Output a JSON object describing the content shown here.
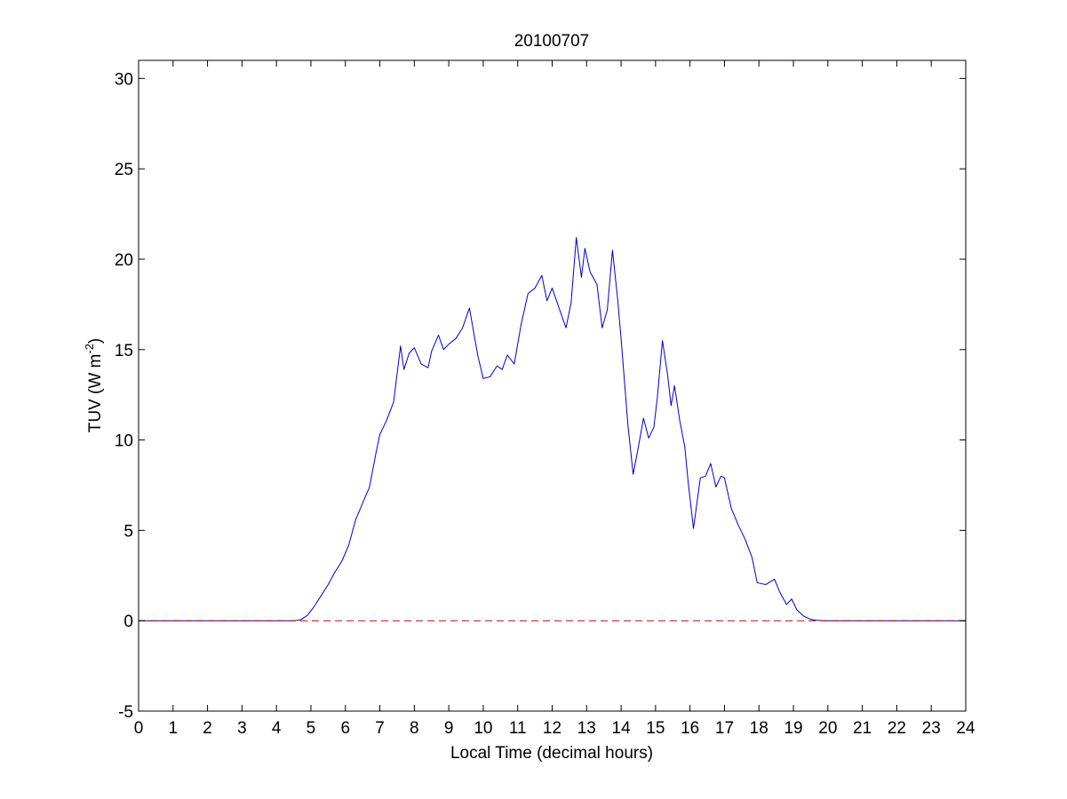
{
  "chart_data": {
    "type": "line",
    "title": "20100707",
    "xlabel": "Local Time (decimal hours)",
    "ylabel": {
      "base": "TUV (W m",
      "superscript": "-2",
      "close": ")"
    },
    "xlim": [
      0,
      24
    ],
    "ylim": [
      -5,
      31
    ],
    "x_ticks": [
      0,
      1,
      2,
      3,
      4,
      5,
      6,
      7,
      8,
      9,
      10,
      11,
      12,
      13,
      14,
      15,
      16,
      17,
      18,
      19,
      20,
      21,
      22,
      23,
      24
    ],
    "y_ticks": [
      -5,
      0,
      5,
      10,
      15,
      20,
      25,
      30
    ],
    "grid": false,
    "legend": "none",
    "series": [
      {
        "color": "#0000cc",
        "style": "solid",
        "x": [
          0,
          4.5,
          4.7,
          4.9,
          5.1,
          5.3,
          5.5,
          5.7,
          5.9,
          6.1,
          6.3,
          6.5,
          6.7,
          6.9,
          7.0,
          7.2,
          7.4,
          7.6,
          7.7,
          7.85,
          8.0,
          8.2,
          8.4,
          8.5,
          8.7,
          8.85,
          9.0,
          9.2,
          9.4,
          9.6,
          9.7,
          9.85,
          10.0,
          10.2,
          10.4,
          10.55,
          10.7,
          10.9,
          11.1,
          11.3,
          11.5,
          11.7,
          11.85,
          12.0,
          12.2,
          12.4,
          12.55,
          12.7,
          12.85,
          12.95,
          13.1,
          13.3,
          13.45,
          13.6,
          13.75,
          13.9,
          14.0,
          14.2,
          14.35,
          14.5,
          14.65,
          14.8,
          14.95,
          15.05,
          15.2,
          15.35,
          15.45,
          15.55,
          15.7,
          15.85,
          15.95,
          16.1,
          16.3,
          16.45,
          16.6,
          16.75,
          16.9,
          17.0,
          17.2,
          17.4,
          17.6,
          17.8,
          17.95,
          18.2,
          18.45,
          18.6,
          18.8,
          18.95,
          19.1,
          19.3,
          19.5,
          19.7,
          19.9,
          20.2,
          24
        ],
        "y": [
          0,
          0,
          0.05,
          0.3,
          0.8,
          1.4,
          2.0,
          2.7,
          3.3,
          4.2,
          5.6,
          6.5,
          7.4,
          9.4,
          10.3,
          11.1,
          12.1,
          15.2,
          13.9,
          14.8,
          15.1,
          14.2,
          14.0,
          14.9,
          15.8,
          15.0,
          15.3,
          15.6,
          16.2,
          17.3,
          16.2,
          14.6,
          13.4,
          13.5,
          14.1,
          13.9,
          14.7,
          14.2,
          16.4,
          18.1,
          18.4,
          19.1,
          17.7,
          18.4,
          17.3,
          16.2,
          17.6,
          21.2,
          19.0,
          20.6,
          19.3,
          18.6,
          16.2,
          17.2,
          20.5,
          17.8,
          15.6,
          10.8,
          8.1,
          9.6,
          11.2,
          10.1,
          10.7,
          12.3,
          15.5,
          13.6,
          11.9,
          13.0,
          11.1,
          9.6,
          7.6,
          5.1,
          7.9,
          8.0,
          8.7,
          7.4,
          8.0,
          7.9,
          6.2,
          5.3,
          4.5,
          3.5,
          2.1,
          2.0,
          2.3,
          1.6,
          0.9,
          1.2,
          0.6,
          0.25,
          0.08,
          0.02,
          0,
          0,
          0
        ]
      },
      {
        "color": "#cc0000",
        "style": "dashed",
        "x": [
          0,
          24
        ],
        "y": [
          0,
          0
        ]
      }
    ]
  }
}
